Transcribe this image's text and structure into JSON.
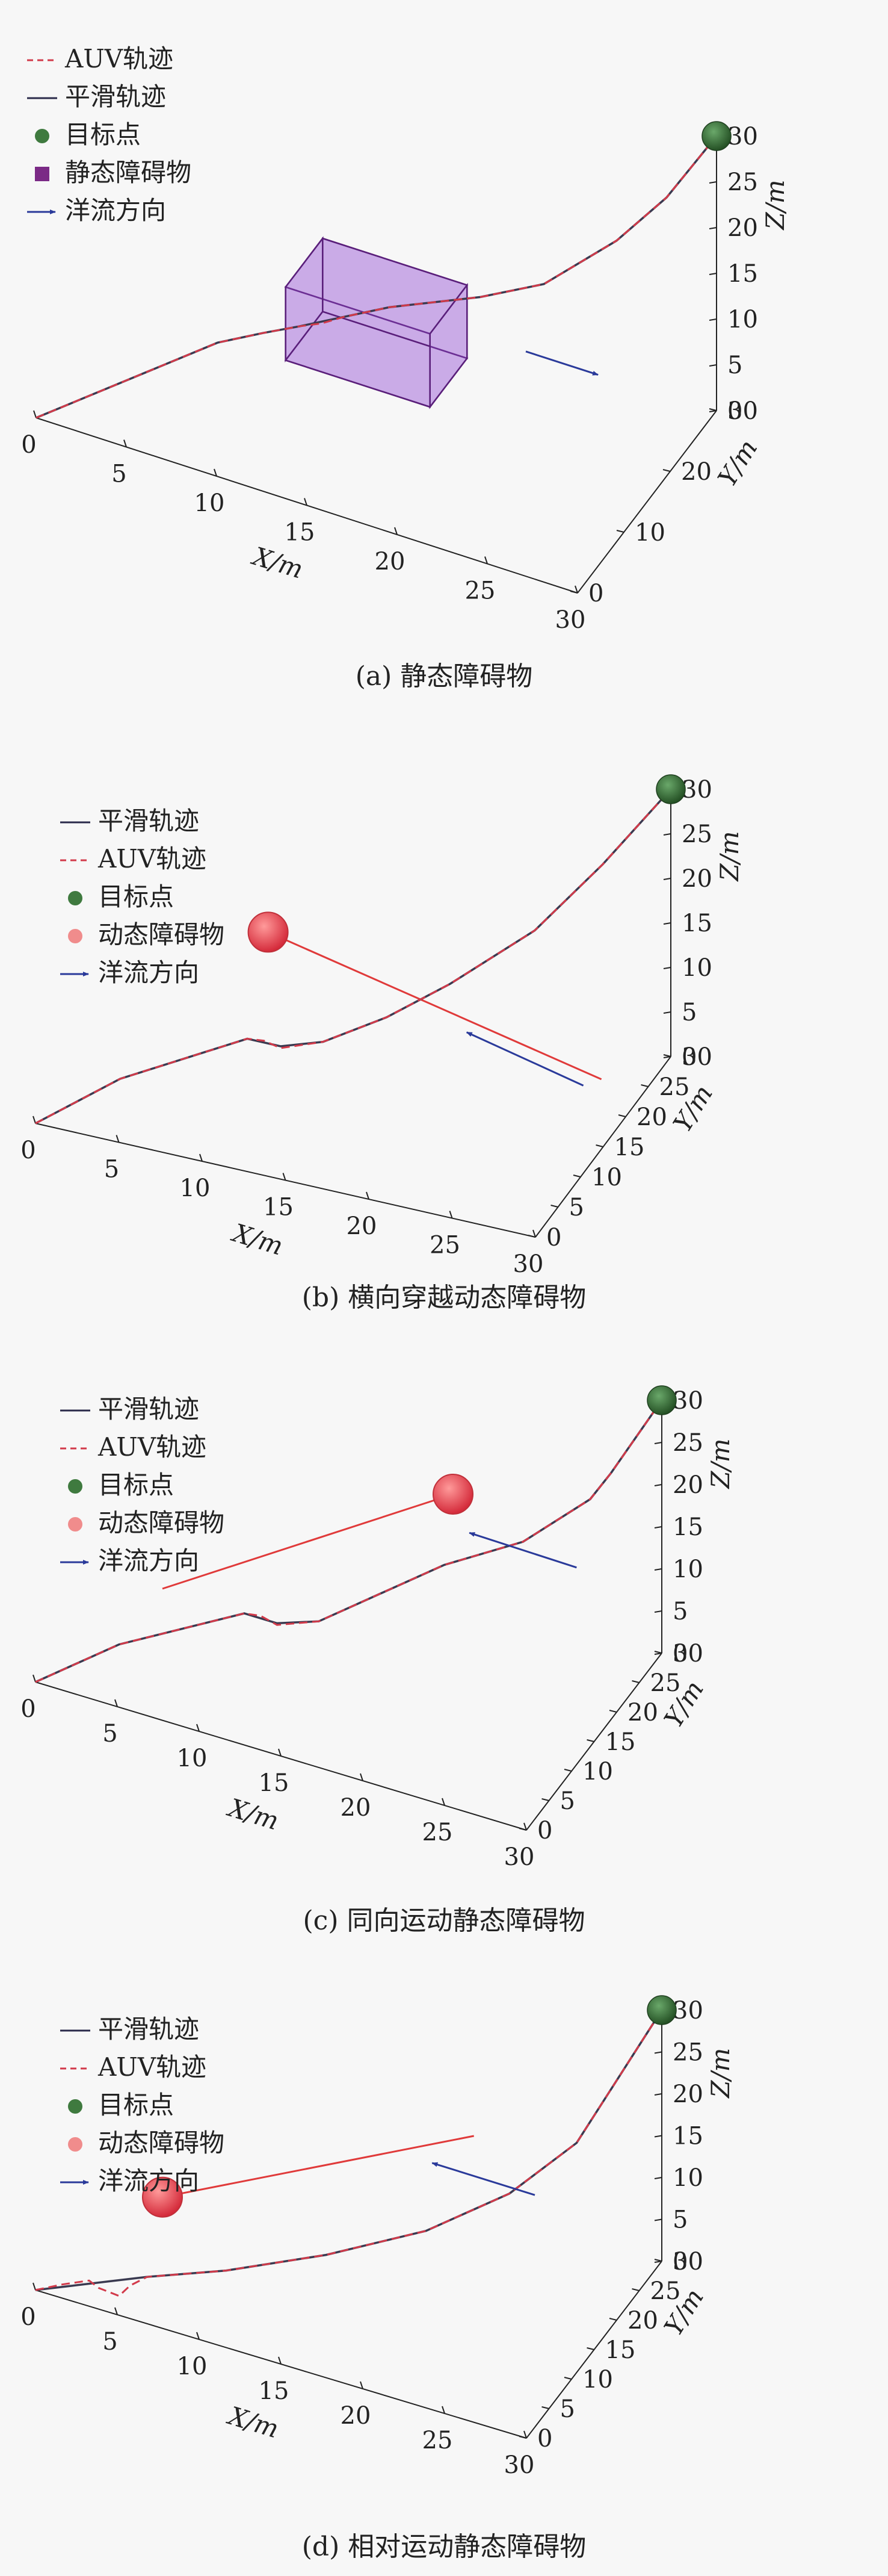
{
  "chart_data": [
    {
      "type": "line3d",
      "caption": "(a) 静态障碍物",
      "xlabel": "X/m",
      "ylabel": "Y/m",
      "zlabel": "Z/m",
      "x_ticks": [
        "0",
        "5",
        "10",
        "15",
        "20",
        "25",
        "30"
      ],
      "y_ticks": [
        "0",
        "10",
        "20",
        "30"
      ],
      "z_ticks": [
        "0",
        "5",
        "10",
        "15",
        "20",
        "25",
        "30"
      ],
      "xlim": [
        0,
        30
      ],
      "ylim": [
        0,
        30
      ],
      "zlim": [
        0,
        30
      ],
      "legend": [
        {
          "label": "AUV轨迹",
          "kind": "dashed",
          "color": "#d23a4a"
        },
        {
          "label": "平滑轨迹",
          "kind": "solid",
          "color": "#2a2a4a"
        },
        {
          "label": "目标点",
          "kind": "dot",
          "color": "#3f7a3f"
        },
        {
          "label": "静态障碍物",
          "kind": "square",
          "color": "#7b2a86"
        },
        {
          "label": "洋流方向",
          "kind": "arrow",
          "color": "#2a3a9a"
        }
      ],
      "colors": {
        "auv": "#d23a4a",
        "smooth": "#3a3a50",
        "target": "#3a6e3a",
        "obstacle": "#9b59d6",
        "current": "#2a3a9a"
      },
      "target": [
        30,
        30,
        30
      ],
      "obstacle": {
        "kind": "box",
        "x": [
          11,
          19
        ],
        "y": [
          11,
          19
        ],
        "z": [
          6,
          14
        ]
      },
      "current_arrow": {
        "from": [
          22,
          20,
          8
        ],
        "to": [
          26,
          20,
          8
        ]
      },
      "smooth": [
        [
          0,
          0,
          0
        ],
        [
          4,
          4,
          4
        ],
        [
          8,
          8,
          8
        ],
        [
          10,
          10,
          9
        ],
        [
          12,
          10,
          11
        ],
        [
          14,
          12,
          12
        ],
        [
          16,
          14,
          13
        ],
        [
          20,
          18,
          14
        ],
        [
          23,
          20,
          16
        ],
        [
          26,
          24,
          20
        ],
        [
          28,
          27,
          24
        ],
        [
          30,
          30,
          30
        ]
      ],
      "auv": [
        [
          0,
          0,
          0
        ],
        [
          4,
          4,
          4
        ],
        [
          8,
          8,
          8
        ],
        [
          10,
          10,
          9
        ],
        [
          11,
          10,
          10
        ],
        [
          12,
          10,
          11
        ],
        [
          13,
          11,
          11.3
        ],
        [
          14,
          12,
          12
        ],
        [
          16,
          14,
          13
        ],
        [
          20,
          18,
          14
        ],
        [
          23,
          20,
          16
        ],
        [
          26,
          24,
          20
        ],
        [
          28,
          27,
          24
        ],
        [
          30,
          30,
          30
        ]
      ]
    },
    {
      "type": "line3d",
      "caption": "(b) 横向穿越动态障碍物",
      "xlabel": "X/m",
      "ylabel": "Y/m",
      "zlabel": "Z/m",
      "x_ticks": [
        "0",
        "5",
        "10",
        "15",
        "20",
        "25",
        "30"
      ],
      "y_ticks": [
        "0",
        "5",
        "10",
        "15",
        "20",
        "25",
        "30"
      ],
      "z_ticks": [
        "0",
        "5",
        "10",
        "15",
        "20",
        "25",
        "30"
      ],
      "xlim": [
        0,
        30
      ],
      "ylim": [
        0,
        30
      ],
      "zlim": [
        0,
        30
      ],
      "legend": [
        {
          "label": "平滑轨迹",
          "kind": "solid",
          "color": "#2a2a4a"
        },
        {
          "label": "AUV轨迹",
          "kind": "dashed",
          "color": "#d23a4a"
        },
        {
          "label": "目标点",
          "kind": "dot",
          "color": "#3f7a3f"
        },
        {
          "label": "动态障碍物",
          "kind": "dot",
          "color": "#f08c8c"
        },
        {
          "label": "洋流方向",
          "kind": "arrow",
          "color": "#2a3a9a"
        }
      ],
      "colors": {
        "auv": "#d23a4a",
        "smooth": "#3a3a50",
        "target": "#3a6e3a",
        "obstacle": "#e03a3a",
        "current": "#2a3a9a"
      },
      "target": [
        30,
        30,
        30
      ],
      "obstacle": {
        "kind": "sphere",
        "center": [
          8,
          22,
          10
        ],
        "trail_to": [
          28,
          22,
          2
        ]
      },
      "current_arrow": {
        "from": [
          28,
          18,
          4
        ],
        "to": [
          21,
          18,
          7
        ]
      },
      "smooth": [
        [
          0,
          0,
          0
        ],
        [
          4,
          4,
          4
        ],
        [
          8,
          8,
          6
        ],
        [
          10,
          10,
          7
        ],
        [
          12,
          10,
          7
        ],
        [
          14,
          12,
          7
        ],
        [
          17,
          15,
          9
        ],
        [
          20,
          18,
          12
        ],
        [
          24,
          22,
          17
        ],
        [
          27,
          26,
          23
        ],
        [
          30,
          30,
          30
        ]
      ],
      "auv": [
        [
          0,
          0,
          0
        ],
        [
          4,
          4,
          4
        ],
        [
          8,
          8,
          6
        ],
        [
          10,
          10,
          7
        ],
        [
          11,
          10,
          7.2
        ],
        [
          12,
          10,
          6.8
        ],
        [
          13,
          11,
          6.9
        ],
        [
          14,
          12,
          7
        ],
        [
          17,
          15,
          9
        ],
        [
          20,
          18,
          12
        ],
        [
          24,
          22,
          17
        ],
        [
          27,
          26,
          23
        ],
        [
          30,
          30,
          30
        ]
      ]
    },
    {
      "type": "line3d",
      "caption": "(c) 同向运动静态障碍物",
      "xlabel": "X/m",
      "ylabel": "Y/m",
      "zlabel": "Z/m",
      "x_ticks": [
        "0",
        "5",
        "10",
        "15",
        "20",
        "25",
        "30"
      ],
      "y_ticks": [
        "0",
        "5",
        "10",
        "15",
        "20",
        "25",
        "30"
      ],
      "z_ticks": [
        "0",
        "5",
        "10",
        "15",
        "20",
        "25",
        "30"
      ],
      "xlim": [
        0,
        30
      ],
      "ylim": [
        0,
        30
      ],
      "zlim": [
        0,
        30
      ],
      "legend": [
        {
          "label": "平滑轨迹",
          "kind": "solid",
          "color": "#2a2a4a"
        },
        {
          "label": "AUV轨迹",
          "kind": "dashed",
          "color": "#d23a4a"
        },
        {
          "label": "目标点",
          "kind": "dot",
          "color": "#3f7a3f"
        },
        {
          "label": "动态障碍物",
          "kind": "dot",
          "color": "#f08c8c"
        },
        {
          "label": "洋流方向",
          "kind": "arrow",
          "color": "#2a3a9a"
        }
      ],
      "colors": {
        "auv": "#d23a4a",
        "smooth": "#3a3a50",
        "target": "#3a6e3a",
        "obstacle": "#e03a3a",
        "current": "#2a3a9a"
      },
      "target": [
        30,
        30,
        30
      ],
      "obstacle": {
        "kind": "sphere",
        "center": [
          20,
          20,
          20
        ],
        "trail_to": [
          5,
          10,
          7
        ]
      },
      "current_arrow": {
        "from": [
          27,
          22,
          14
        ],
        "to": [
          21,
          20,
          16
        ]
      },
      "smooth": [
        [
          0,
          0,
          0
        ],
        [
          4,
          4,
          4
        ],
        [
          8,
          8,
          6
        ],
        [
          10,
          10,
          7
        ],
        [
          12,
          10,
          7
        ],
        [
          14,
          12,
          7
        ],
        [
          17,
          15,
          10
        ],
        [
          20,
          18,
          13
        ],
        [
          24,
          21,
          16
        ],
        [
          27,
          25,
          20
        ],
        [
          28,
          26,
          23
        ],
        [
          30,
          30,
          30
        ]
      ],
      "auv": [
        [
          0,
          0,
          0
        ],
        [
          4,
          4,
          4
        ],
        [
          8,
          8,
          6
        ],
        [
          10,
          10,
          7
        ],
        [
          11,
          10,
          7.3
        ],
        [
          12,
          10,
          6.8
        ],
        [
          13,
          11,
          6.9
        ],
        [
          14,
          12,
          7
        ],
        [
          17,
          15,
          10
        ],
        [
          20,
          18,
          13
        ],
        [
          24,
          21,
          16
        ],
        [
          27,
          25,
          20
        ],
        [
          28,
          26,
          23
        ],
        [
          30,
          30,
          30
        ]
      ]
    },
    {
      "type": "line3d",
      "caption": "(d) 相对运动静态障碍物",
      "xlabel": "X/m",
      "ylabel": "Y/m",
      "zlabel": "Z/m",
      "x_ticks": [
        "0",
        "5",
        "10",
        "15",
        "20",
        "25",
        "30"
      ],
      "y_ticks": [
        "0",
        "5",
        "10",
        "15",
        "20",
        "25",
        "30"
      ],
      "z_ticks": [
        "0",
        "5",
        "10",
        "15",
        "20",
        "25",
        "30"
      ],
      "xlim": [
        0,
        30
      ],
      "ylim": [
        0,
        30
      ],
      "zlim": [
        0,
        30
      ],
      "legend": [
        {
          "label": "平滑轨迹",
          "kind": "solid",
          "color": "#2a2a4a"
        },
        {
          "label": "AUV轨迹",
          "kind": "dashed",
          "color": "#d23a4a"
        },
        {
          "label": "目标点",
          "kind": "dot",
          "color": "#3f7a3f"
        },
        {
          "label": "动态障碍物",
          "kind": "dot",
          "color": "#f08c8c"
        },
        {
          "label": "洋流方向",
          "kind": "arrow",
          "color": "#2a3a9a"
        }
      ],
      "colors": {
        "auv": "#d23a4a",
        "smooth": "#3a3a50",
        "target": "#3a6e3a",
        "obstacle": "#e03a3a",
        "current": "#2a3a9a"
      },
      "target": [
        30,
        30,
        30
      ],
      "obstacle": {
        "kind": "sphere",
        "center": [
          5,
          10,
          7
        ],
        "trail_to": [
          21,
          21,
          16
        ]
      },
      "current_arrow": {
        "from": [
          25,
          20,
          12
        ],
        "to": [
          19,
          19,
          13
        ]
      },
      "smooth": [
        [
          0,
          0,
          0
        ],
        [
          2,
          1,
          1
        ],
        [
          4,
          2,
          2
        ],
        [
          6,
          3,
          3
        ],
        [
          10,
          6,
          4
        ],
        [
          15,
          10,
          6
        ],
        [
          20,
          14,
          9
        ],
        [
          24,
          18,
          13
        ],
        [
          27,
          22,
          18
        ],
        [
          28.5,
          26,
          24
        ],
        [
          30,
          30,
          30
        ]
      ],
      "auv": [
        [
          0,
          0,
          0
        ],
        [
          1.5,
          0.5,
          1.2
        ],
        [
          3,
          1,
          2.2
        ],
        [
          3.5,
          1.3,
          1.4
        ],
        [
          4.5,
          2.2,
          0.4
        ],
        [
          5,
          2.8,
          1.5
        ],
        [
          6,
          3,
          3
        ],
        [
          10,
          6,
          4
        ],
        [
          15,
          10,
          6
        ],
        [
          20,
          14,
          9
        ],
        [
          24,
          18,
          13
        ],
        [
          27,
          22,
          18
        ],
        [
          28.5,
          26,
          24
        ],
        [
          30,
          30,
          30
        ]
      ]
    }
  ]
}
